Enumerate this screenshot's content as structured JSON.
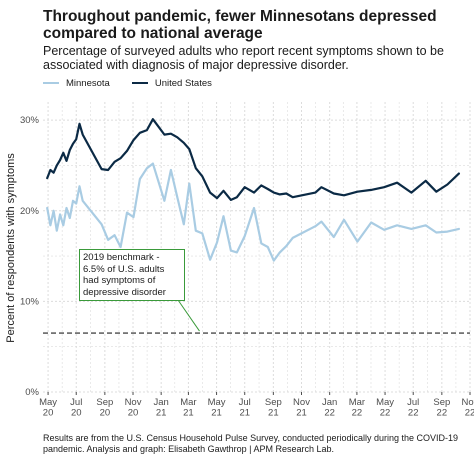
{
  "title": "Throughout pandemic, fewer Minnesotans depressed compared to national average",
  "subtitle": "Percentage of surveyed adults who report recent symptoms shown to be associated with diagnosis of major depressive disorder.",
  "caption": "Results are from the U.S. Census Household Pulse Survey, conducted periodically during the COVID-19 pandemic. Analysis and graph: Elisabeth Gawthrop | APM Research Lab.",
  "colors": {
    "minnesota": "#a9cce3",
    "united_states": "#0b2a45",
    "benchmark": "#222222",
    "annotation": "#3a9a3a",
    "grid": "#dcdcdc"
  },
  "chart_data": {
    "type": "line",
    "ylabel": "Percent of respondents with symptoms",
    "xlabel": "",
    "ylim": [
      0,
      32
    ],
    "yticks": [
      0,
      10,
      20,
      30
    ],
    "ytick_labels": [
      "0%",
      "10%",
      "20%",
      "30%"
    ],
    "xlim": [
      "2020-04-20",
      "2022-11-01"
    ],
    "xticks": [
      {
        "date": "2020-05-01",
        "label": "May\n20"
      },
      {
        "date": "2020-07-01",
        "label": "Jul\n20"
      },
      {
        "date": "2020-09-01",
        "label": "Sep\n20"
      },
      {
        "date": "2020-11-01",
        "label": "Nov\n20"
      },
      {
        "date": "2021-01-01",
        "label": "Jan\n21"
      },
      {
        "date": "2021-03-01",
        "label": "Mar\n21"
      },
      {
        "date": "2021-05-01",
        "label": "May\n21"
      },
      {
        "date": "2021-07-01",
        "label": "Jul\n21"
      },
      {
        "date": "2021-09-01",
        "label": "Sep\n21"
      },
      {
        "date": "2021-11-01",
        "label": "Nov\n21"
      },
      {
        "date": "2022-01-01",
        "label": "Jan\n22"
      },
      {
        "date": "2022-03-01",
        "label": "Mar\n22"
      },
      {
        "date": "2022-05-01",
        "label": "May\n22"
      },
      {
        "date": "2022-07-01",
        "label": "Jul\n22"
      },
      {
        "date": "2022-09-01",
        "label": "Sep\n22"
      },
      {
        "date": "2022-11-01",
        "label": "Nov\n22"
      }
    ],
    "legend_position": "top-left",
    "grid": true,
    "series": [
      {
        "name": "Minnesota",
        "x": [
          "2020-04-29",
          "2020-05-06",
          "2020-05-13",
          "2020-05-20",
          "2020-05-27",
          "2020-06-03",
          "2020-06-10",
          "2020-06-17",
          "2020-06-24",
          "2020-07-01",
          "2020-07-08",
          "2020-07-15",
          "2020-08-25",
          "2020-09-08",
          "2020-09-22",
          "2020-10-05",
          "2020-10-19",
          "2020-11-02",
          "2020-11-16",
          "2020-12-01",
          "2020-12-14",
          "2021-01-08",
          "2021-01-22",
          "2021-02-05",
          "2021-02-19",
          "2021-03-03",
          "2021-03-17",
          "2021-03-31",
          "2021-04-17",
          "2021-05-02",
          "2021-05-16",
          "2021-06-01",
          "2021-06-14",
          "2021-07-01",
          "2021-07-21",
          "2021-08-06",
          "2021-08-20",
          "2021-09-02",
          "2021-09-15",
          "2021-09-29",
          "2021-10-13",
          "2021-12-01",
          "2021-12-14",
          "2022-01-10",
          "2022-02-01",
          "2022-03-02",
          "2022-04-01",
          "2022-04-29",
          "2022-05-27",
          "2022-06-27",
          "2022-07-28",
          "2022-08-20",
          "2022-09-13",
          "2022-10-08"
        ],
        "values": [
          20.3,
          18.4,
          20.0,
          17.8,
          19.6,
          18.4,
          20.3,
          19.2,
          21.1,
          20.8,
          22.7,
          21.1,
          18.5,
          16.8,
          17.3,
          16.0,
          19.8,
          19.3,
          23.5,
          24.7,
          25.2,
          21.1,
          24.5,
          21.5,
          18.5,
          23.0,
          17.8,
          17.5,
          14.6,
          16.5,
          19.4,
          15.6,
          15.4,
          17.2,
          20.3,
          16.4,
          16.0,
          14.5,
          15.4,
          16.1,
          17.0,
          18.3,
          18.8,
          17.1,
          19.0,
          16.6,
          18.7,
          17.9,
          18.4,
          18.0,
          18.4,
          17.6,
          17.7,
          18.0
        ]
      },
      {
        "name": "United States",
        "x": [
          "2020-04-29",
          "2020-05-06",
          "2020-05-13",
          "2020-05-20",
          "2020-05-27",
          "2020-06-03",
          "2020-06-10",
          "2020-06-17",
          "2020-06-24",
          "2020-07-01",
          "2020-07-08",
          "2020-07-15",
          "2020-08-25",
          "2020-09-08",
          "2020-09-22",
          "2020-10-05",
          "2020-10-19",
          "2020-11-02",
          "2020-11-16",
          "2020-12-01",
          "2020-12-14",
          "2021-01-08",
          "2021-01-22",
          "2021-02-05",
          "2021-02-19",
          "2021-03-03",
          "2021-03-17",
          "2021-03-31",
          "2021-04-17",
          "2021-05-02",
          "2021-05-16",
          "2021-06-01",
          "2021-06-14",
          "2021-07-01",
          "2021-07-21",
          "2021-08-06",
          "2021-08-20",
          "2021-09-02",
          "2021-09-15",
          "2021-09-29",
          "2021-10-13",
          "2021-12-01",
          "2021-12-14",
          "2022-01-10",
          "2022-02-01",
          "2022-03-02",
          "2022-04-01",
          "2022-04-29",
          "2022-05-27",
          "2022-06-27",
          "2022-07-28",
          "2022-08-20",
          "2022-09-13",
          "2022-10-08"
        ],
        "values": [
          23.6,
          24.5,
          24.2,
          25.0,
          25.6,
          26.4,
          25.5,
          26.7,
          27.4,
          27.9,
          29.6,
          28.4,
          24.6,
          24.5,
          25.4,
          25.8,
          26.6,
          27.8,
          28.6,
          28.9,
          30.1,
          28.4,
          28.5,
          28.1,
          27.5,
          26.8,
          24.7,
          23.8,
          22.0,
          21.4,
          22.2,
          21.2,
          21.5,
          22.6,
          22.0,
          22.8,
          22.4,
          22.0,
          21.8,
          21.9,
          21.5,
          22.0,
          22.6,
          21.9,
          21.7,
          22.1,
          22.3,
          22.6,
          23.1,
          22.0,
          23.3,
          22.1,
          22.9,
          24.1
        ]
      }
    ],
    "annotations": [
      {
        "type": "hline",
        "y": 6.5,
        "style": "dashed"
      },
      {
        "type": "note",
        "text": "2019 benchmark -\n6.5% of U.S. adults\nhad symptoms of\ndepressive disorder",
        "points_to": {
          "x": "2021-03-25",
          "y": 6.5
        }
      }
    ]
  }
}
